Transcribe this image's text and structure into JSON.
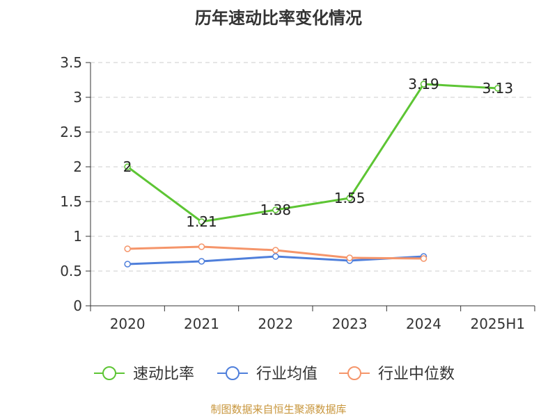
{
  "chart_data": {
    "type": "line",
    "title": "历年速动比率变化情况",
    "categories": [
      "2020",
      "2021",
      "2022",
      "2023",
      "2024",
      "2025H1"
    ],
    "ylim": [
      0,
      3.5
    ],
    "yticks": [
      "0",
      "0.5",
      "1",
      "1.5",
      "2",
      "2.5",
      "3",
      "3.5"
    ],
    "grid": true,
    "legend_position": "bottom",
    "series": [
      {
        "name": "速动比率",
        "color": "#5dc534",
        "values": [
          2,
          1.21,
          1.38,
          1.55,
          3.19,
          3.13
        ],
        "labels": [
          "2",
          "1.21",
          "1.38",
          "1.55",
          "3.19",
          "3.13"
        ]
      },
      {
        "name": "行业均值",
        "color": "#4f7fdb",
        "values": [
          0.6,
          0.64,
          0.71,
          0.65,
          0.71,
          null
        ]
      },
      {
        "name": "行业中位数",
        "color": "#f5956a",
        "values": [
          0.82,
          0.85,
          0.8,
          0.69,
          0.68,
          null
        ]
      }
    ]
  },
  "source": "制图数据来自恒生聚源数据库"
}
